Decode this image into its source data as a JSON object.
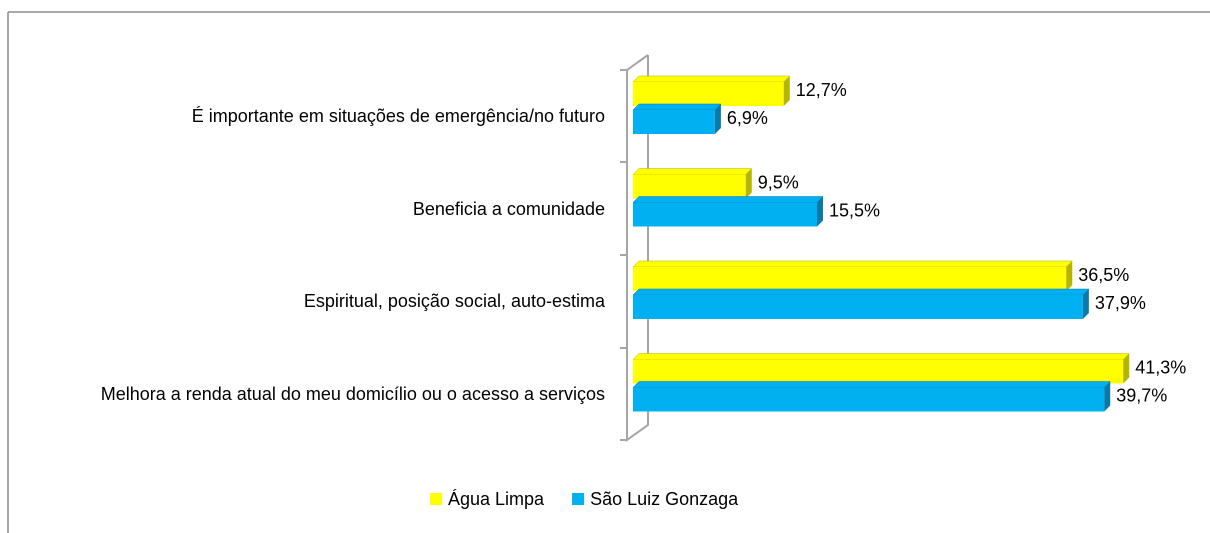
{
  "chart_data": {
    "type": "bar",
    "orientation": "horizontal",
    "categories": [
      "É importante em situações de emergência/no futuro",
      "Beneficia a comunidade",
      "Espiritual, posição social, auto-estima",
      "Melhora a renda atual do meu domicílio ou o acesso a serviços"
    ],
    "series": [
      {
        "name": "Água Limpa",
        "color": "#ffff00",
        "side_color": "#b5b500",
        "values": [
          12.7,
          9.5,
          36.5,
          41.3
        ],
        "value_labels": [
          "12,7%",
          "9,5%",
          "36,5%",
          "41,3%"
        ]
      },
      {
        "name": "São Luiz Gonzaga",
        "color": "#00b0f0",
        "side_color": "#0a78a8",
        "values": [
          6.9,
          15.5,
          37.9,
          39.7
        ],
        "value_labels": [
          "6,9%",
          "15,5%",
          "37,9%",
          "39,7%"
        ]
      }
    ],
    "legend": "bottom"
  }
}
